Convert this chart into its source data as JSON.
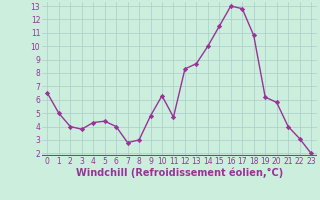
{
  "x": [
    0,
    1,
    2,
    3,
    4,
    5,
    6,
    7,
    8,
    9,
    10,
    11,
    12,
    13,
    14,
    15,
    16,
    17,
    18,
    19,
    20,
    21,
    22,
    23
  ],
  "y": [
    6.5,
    5.0,
    4.0,
    3.8,
    4.3,
    4.4,
    4.0,
    2.8,
    3.0,
    4.8,
    6.3,
    4.7,
    8.3,
    8.7,
    10.0,
    11.5,
    13.0,
    12.8,
    10.8,
    6.2,
    5.8,
    4.0,
    3.1,
    2.0
  ],
  "line_color": "#993399",
  "marker": "D",
  "marker_size": 2.2,
  "bg_color": "#cceedd",
  "grid_color": "#aacccc",
  "xlabel": "Windchill (Refroidissement éolien,°C)",
  "xlabel_color": "#993399",
  "tick_color": "#993399",
  "ylim": [
    2,
    13
  ],
  "xlim": [
    -0.5,
    23.5
  ],
  "yticks": [
    2,
    3,
    4,
    5,
    6,
    7,
    8,
    9,
    10,
    11,
    12,
    13
  ],
  "xticks": [
    0,
    1,
    2,
    3,
    4,
    5,
    6,
    7,
    8,
    9,
    10,
    11,
    12,
    13,
    14,
    15,
    16,
    17,
    18,
    19,
    20,
    21,
    22,
    23
  ],
  "tick_fontsize": 5.5,
  "xlabel_fontsize": 7.0,
  "linewidth": 1.0,
  "purple_bar_color": "#993399",
  "spine_color": "#aacccc"
}
